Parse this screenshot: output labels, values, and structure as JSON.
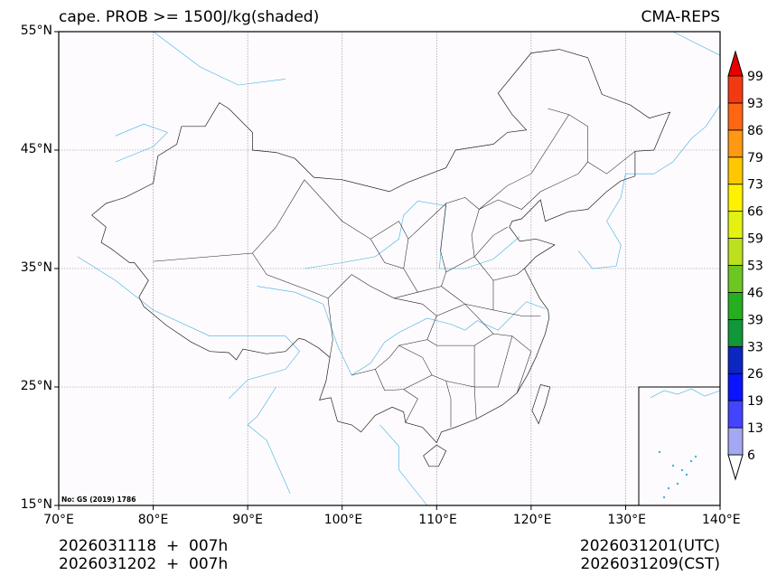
{
  "header": {
    "title": "cape. PROB >= 1500J/kg(shaded)",
    "source": "CMA-REPS"
  },
  "map": {
    "lon_range": [
      70,
      140
    ],
    "lat_range": [
      15,
      55
    ],
    "lat_ticks": [
      {
        "value": 15,
        "label": "15°N"
      },
      {
        "value": 25,
        "label": "25°N"
      },
      {
        "value": 35,
        "label": "35°N"
      },
      {
        "value": 45,
        "label": "45°N"
      },
      {
        "value": 55,
        "label": "55°N"
      }
    ],
    "lon_ticks": [
      {
        "value": 70,
        "label": "70°E"
      },
      {
        "value": 80,
        "label": "80°E"
      },
      {
        "value": 90,
        "label": "90°E"
      },
      {
        "value": 100,
        "label": "100°E"
      },
      {
        "value": 110,
        "label": "110°E"
      },
      {
        "value": 120,
        "label": "120°E"
      },
      {
        "value": 130,
        "label": "130°E"
      },
      {
        "value": 140,
        "label": "140°E"
      }
    ],
    "map_approval_no": "No: GS (2019) 1786",
    "border_color": "#222222",
    "water_color": "#3fb0e0",
    "background": "#fdfbfe"
  },
  "colorbar": {
    "labels": [
      "6",
      "13",
      "19",
      "26",
      "33",
      "39",
      "46",
      "53",
      "59",
      "66",
      "73",
      "79",
      "86",
      "93",
      "99"
    ],
    "colors": [
      "#a3a8f2",
      "#4444ff",
      "#0a14ff",
      "#0c26c0",
      "#11963a",
      "#26ae20",
      "#6ec622",
      "#bde01e",
      "#e4f212",
      "#fff200",
      "#ffc800",
      "#ff9812",
      "#ff6614",
      "#f23a12"
    ],
    "over_color": "#e80000",
    "under_color": "#ffffff"
  },
  "footer": {
    "init_utc": "2026031118  +  007h",
    "init_cst": "2026031202  +  007h",
    "valid_utc": "2026031201(UTC)",
    "valid_cst": "2026031209(CST)"
  }
}
